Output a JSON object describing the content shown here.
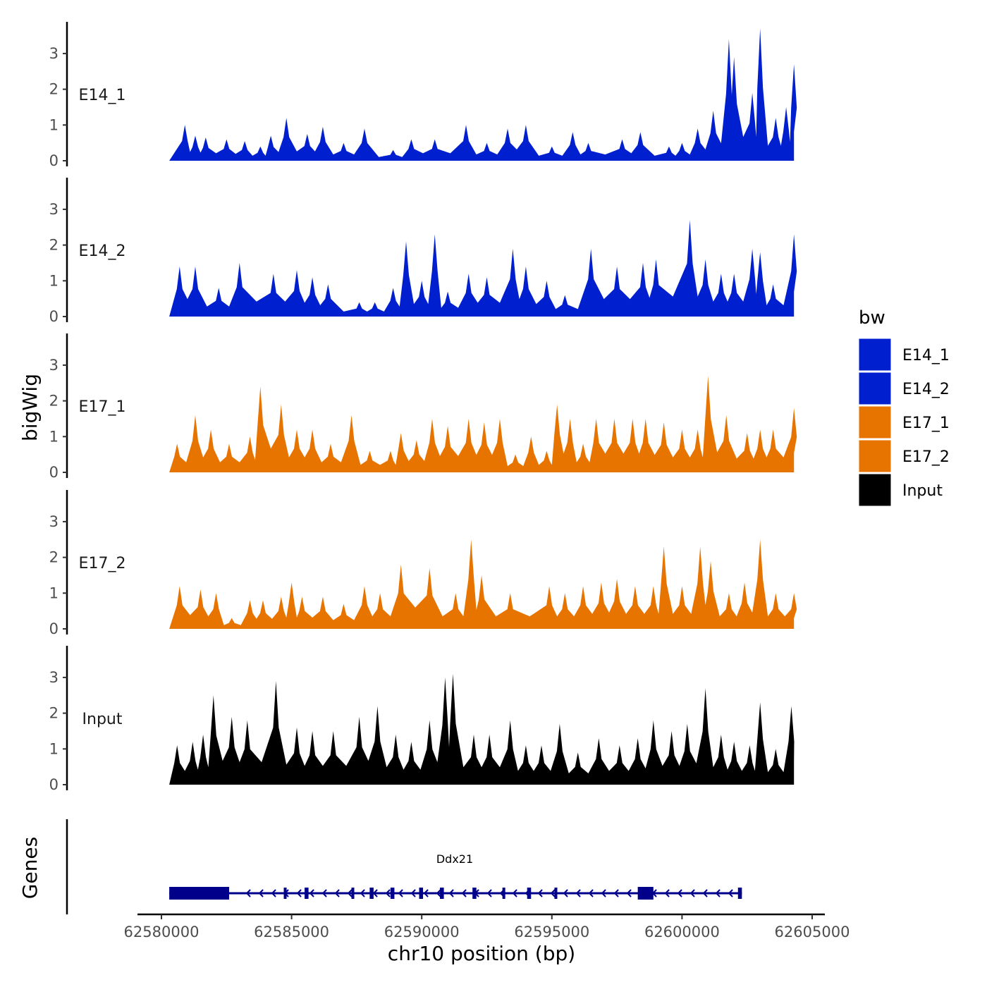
{
  "chart_data": {
    "type": "area",
    "ylabel": "bigWig",
    "xlabel": "chr10 position (bp)",
    "genes_label": "Genes",
    "ylim": [
      0,
      3.8
    ],
    "yticks": [
      "0",
      "1",
      "2",
      "3"
    ],
    "xlim": [
      62579000,
      62605500
    ],
    "xticks": [
      {
        "value": 62580000,
        "label": "62580000"
      },
      {
        "value": 62585000,
        "label": "62585000"
      },
      {
        "value": 62590000,
        "label": "62590000"
      },
      {
        "value": 62595000,
        "label": "62595000"
      },
      {
        "value": 62600000,
        "label": "62600000"
      },
      {
        "value": 62605000,
        "label": "62605000"
      }
    ],
    "legend": {
      "title": "bw",
      "entries": [
        {
          "name": "E14_1",
          "color": "#0020D0"
        },
        {
          "name": "E14_2",
          "color": "#0020D0"
        },
        {
          "name": "E17_1",
          "color": "#E87400"
        },
        {
          "name": "E17_2",
          "color": "#E87400"
        },
        {
          "name": "Input",
          "color": "#000000"
        }
      ]
    },
    "region": {
      "start": 62580300,
      "end": 62604300
    },
    "series": [
      {
        "name": "E14_1",
        "color": "#0020D0",
        "peaks": [
          [
            62580900,
            1.0
          ],
          [
            62581300,
            0.7
          ],
          [
            62581700,
            0.65
          ],
          [
            62582500,
            0.6
          ],
          [
            62583200,
            0.55
          ],
          [
            62583800,
            0.4
          ],
          [
            62584200,
            0.7
          ],
          [
            62584800,
            1.2
          ],
          [
            62585600,
            0.75
          ],
          [
            62586200,
            0.95
          ],
          [
            62587000,
            0.5
          ],
          [
            62587800,
            0.9
          ],
          [
            62588900,
            0.3
          ],
          [
            62589600,
            0.6
          ],
          [
            62590500,
            0.6
          ],
          [
            62591700,
            1.0
          ],
          [
            62592500,
            0.5
          ],
          [
            62593300,
            0.9
          ],
          [
            62594000,
            1.0
          ],
          [
            62595000,
            0.4
          ],
          [
            62595800,
            0.8
          ],
          [
            62596400,
            0.5
          ],
          [
            62597700,
            0.6
          ],
          [
            62598400,
            0.8
          ],
          [
            62599500,
            0.4
          ],
          [
            62600000,
            0.5
          ],
          [
            62600600,
            0.9
          ],
          [
            62601200,
            1.4
          ],
          [
            62601800,
            3.4
          ],
          [
            62602000,
            2.9
          ],
          [
            62602700,
            1.9
          ],
          [
            62603000,
            3.7
          ],
          [
            62603600,
            1.2
          ],
          [
            62604000,
            1.5
          ],
          [
            62604300,
            2.7
          ]
        ]
      },
      {
        "name": "E14_2",
        "color": "#0020D0",
        "peaks": [
          [
            62580700,
            1.4
          ],
          [
            62581300,
            1.4
          ],
          [
            62582200,
            0.8
          ],
          [
            62583000,
            1.5
          ],
          [
            62584300,
            1.2
          ],
          [
            62585200,
            1.3
          ],
          [
            62585800,
            1.1
          ],
          [
            62586400,
            0.9
          ],
          [
            62587600,
            0.4
          ],
          [
            62588200,
            0.4
          ],
          [
            62588900,
            0.8
          ],
          [
            62589400,
            2.1
          ],
          [
            62590000,
            1.0
          ],
          [
            62590500,
            2.3
          ],
          [
            62591000,
            0.7
          ],
          [
            62591800,
            1.2
          ],
          [
            62592500,
            1.1
          ],
          [
            62593500,
            1.9
          ],
          [
            62594000,
            1.4
          ],
          [
            62594800,
            1.0
          ],
          [
            62595500,
            0.6
          ],
          [
            62596500,
            1.9
          ],
          [
            62597500,
            1.4
          ],
          [
            62598500,
            1.5
          ],
          [
            62599000,
            1.6
          ],
          [
            62600300,
            2.7
          ],
          [
            62600900,
            1.6
          ],
          [
            62601500,
            1.2
          ],
          [
            62602000,
            1.2
          ],
          [
            62602700,
            1.9
          ],
          [
            62603000,
            1.8
          ],
          [
            62603500,
            0.9
          ],
          [
            62604300,
            2.3
          ]
        ]
      },
      {
        "name": "E17_1",
        "color": "#E87400",
        "peaks": [
          [
            62580600,
            0.8
          ],
          [
            62581300,
            1.6
          ],
          [
            62581900,
            1.2
          ],
          [
            62582600,
            0.8
          ],
          [
            62583400,
            1.0
          ],
          [
            62583800,
            2.4
          ],
          [
            62584600,
            1.9
          ],
          [
            62585200,
            1.2
          ],
          [
            62585800,
            1.2
          ],
          [
            62586500,
            0.8
          ],
          [
            62587300,
            1.6
          ],
          [
            62588000,
            0.6
          ],
          [
            62588800,
            0.6
          ],
          [
            62589200,
            1.1
          ],
          [
            62589800,
            0.9
          ],
          [
            62590400,
            1.5
          ],
          [
            62591000,
            1.3
          ],
          [
            62591800,
            1.5
          ],
          [
            62592400,
            1.4
          ],
          [
            62593000,
            1.5
          ],
          [
            62593600,
            0.5
          ],
          [
            62594200,
            1.0
          ],
          [
            62594800,
            0.6
          ],
          [
            62595200,
            1.9
          ],
          [
            62595700,
            1.5
          ],
          [
            62596200,
            0.8
          ],
          [
            62596700,
            1.5
          ],
          [
            62597400,
            1.5
          ],
          [
            62598100,
            1.5
          ],
          [
            62598600,
            1.5
          ],
          [
            62599300,
            1.4
          ],
          [
            62600000,
            1.2
          ],
          [
            62600600,
            1.2
          ],
          [
            62601000,
            2.7
          ],
          [
            62601700,
            1.6
          ],
          [
            62602500,
            1.1
          ],
          [
            62603000,
            1.2
          ],
          [
            62603500,
            1.2
          ],
          [
            62604300,
            1.8
          ]
        ]
      },
      {
        "name": "E17_2",
        "color": "#E87400",
        "peaks": [
          [
            62580700,
            1.2
          ],
          [
            62581500,
            1.1
          ],
          [
            62582100,
            1.0
          ],
          [
            62582700,
            0.3
          ],
          [
            62583400,
            0.8
          ],
          [
            62583900,
            0.8
          ],
          [
            62584600,
            0.9
          ],
          [
            62585000,
            1.3
          ],
          [
            62585400,
            0.9
          ],
          [
            62586200,
            0.9
          ],
          [
            62587000,
            0.7
          ],
          [
            62587800,
            1.2
          ],
          [
            62588400,
            1.0
          ],
          [
            62589200,
            1.8
          ],
          [
            62590300,
            1.7
          ],
          [
            62591300,
            1.0
          ],
          [
            62591900,
            2.5
          ],
          [
            62592300,
            1.5
          ],
          [
            62593400,
            1.0
          ],
          [
            62594900,
            1.2
          ],
          [
            62595500,
            1.0
          ],
          [
            62596200,
            1.2
          ],
          [
            62596900,
            1.3
          ],
          [
            62597500,
            1.4
          ],
          [
            62598200,
            1.2
          ],
          [
            62598900,
            1.2
          ],
          [
            62599300,
            2.3
          ],
          [
            62600000,
            1.2
          ],
          [
            62600700,
            2.3
          ],
          [
            62601100,
            1.9
          ],
          [
            62601800,
            1.0
          ],
          [
            62602400,
            1.3
          ],
          [
            62603000,
            2.5
          ],
          [
            62603600,
            1.0
          ],
          [
            62604300,
            1.0
          ]
        ]
      },
      {
        "name": "Input",
        "color": "#000000",
        "peaks": [
          [
            62580600,
            1.1
          ],
          [
            62581200,
            1.2
          ],
          [
            62581600,
            1.4
          ],
          [
            62582000,
            2.5
          ],
          [
            62582700,
            1.9
          ],
          [
            62583300,
            1.8
          ],
          [
            62584400,
            2.9
          ],
          [
            62585200,
            1.6
          ],
          [
            62585800,
            1.5
          ],
          [
            62586600,
            1.5
          ],
          [
            62587600,
            1.9
          ],
          [
            62588300,
            2.2
          ],
          [
            62589000,
            1.4
          ],
          [
            62589600,
            1.2
          ],
          [
            62590300,
            1.8
          ],
          [
            62590900,
            3.0
          ],
          [
            62591200,
            3.1
          ],
          [
            62592000,
            1.4
          ],
          [
            62592600,
            1.4
          ],
          [
            62593400,
            1.8
          ],
          [
            62594000,
            1.1
          ],
          [
            62594600,
            1.1
          ],
          [
            62595300,
            1.7
          ],
          [
            62596000,
            0.9
          ],
          [
            62596800,
            1.3
          ],
          [
            62597600,
            1.1
          ],
          [
            62598300,
            1.3
          ],
          [
            62598900,
            1.8
          ],
          [
            62599600,
            1.5
          ],
          [
            62600200,
            1.7
          ],
          [
            62600900,
            2.7
          ],
          [
            62601500,
            1.4
          ],
          [
            62602000,
            1.2
          ],
          [
            62602600,
            1.1
          ],
          [
            62603000,
            2.3
          ],
          [
            62603600,
            1.0
          ],
          [
            62604200,
            2.2
          ]
        ]
      }
    ],
    "gene": {
      "name": "Ddx21",
      "strand": "-",
      "start": 62580300,
      "end": 62602300,
      "exons": [
        [
          62580300,
          62582600
        ],
        [
          62584700,
          62584800
        ],
        [
          62585500,
          62585650
        ],
        [
          62587300,
          62587400
        ],
        [
          62588000,
          62588150
        ],
        [
          62588800,
          62588950
        ],
        [
          62589900,
          62590050
        ],
        [
          62590700,
          62590850
        ],
        [
          62591950,
          62592100
        ],
        [
          62593100,
          62593200
        ],
        [
          62594050,
          62594200
        ],
        [
          62595100,
          62595200
        ],
        [
          62598300,
          62598900
        ],
        [
          62602150,
          62602300
        ]
      ]
    }
  }
}
